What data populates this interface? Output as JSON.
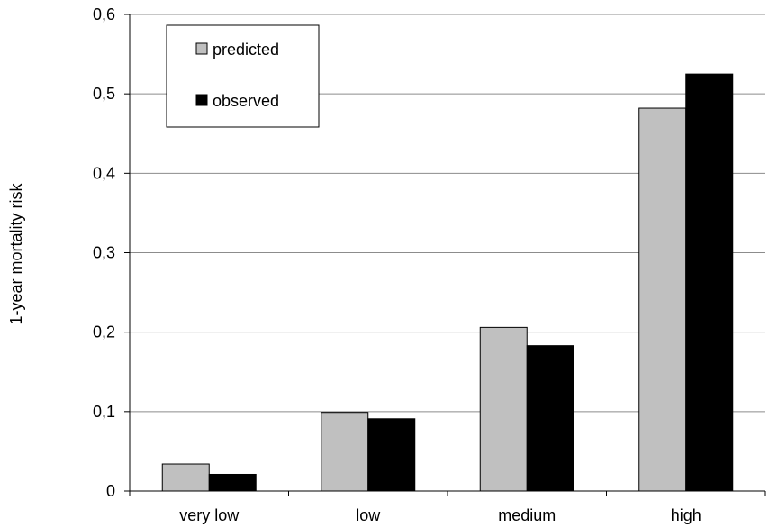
{
  "chart_data": {
    "type": "bar",
    "title": "",
    "xlabel": "",
    "ylabel": "1-year mortality risk",
    "categories": [
      "very low",
      "low",
      "medium",
      "high"
    ],
    "series": [
      {
        "name": "predicted",
        "values": [
          0.034,
          0.099,
          0.206,
          0.482
        ],
        "color": "#c0c0c0"
      },
      {
        "name": "observed",
        "values": [
          0.021,
          0.091,
          0.183,
          0.525
        ],
        "color": "#000000"
      }
    ],
    "ylim": [
      0,
      0.6
    ],
    "yticks": [
      "0",
      "0,1",
      "0,2",
      "0,3",
      "0,4",
      "0,5",
      "0,6"
    ],
    "grid": true,
    "legend_position": "top-left"
  }
}
